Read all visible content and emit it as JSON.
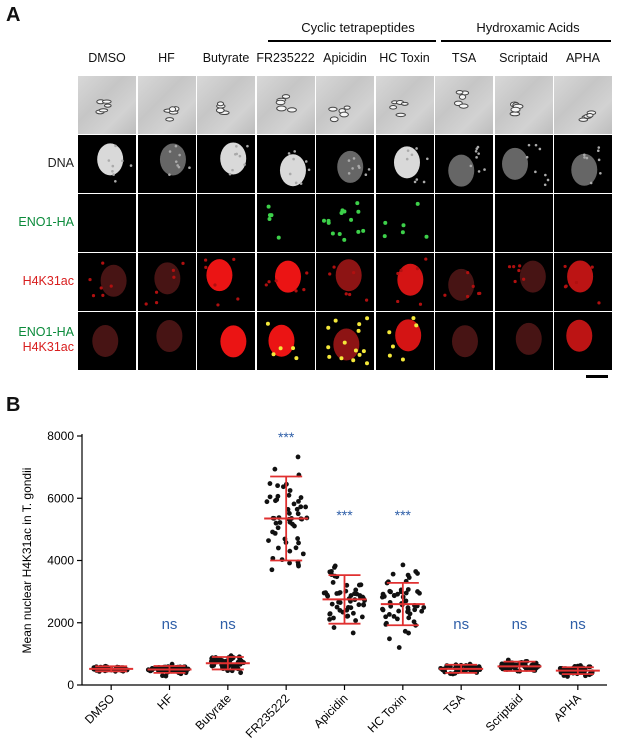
{
  "panel_a": {
    "letter": "A",
    "group_labels": {
      "cyclic": "Cyclic tetrapeptides",
      "hydroxamic": "Hydroxamic Acids"
    },
    "columns": [
      "DMSO",
      "HF",
      "Butyrate",
      "FR235222",
      "Apicidin",
      "HC Toxin",
      "TSA",
      "Scriptaid",
      "APHA"
    ],
    "rows": [
      {
        "label": "",
        "colors": []
      },
      {
        "label": "DNA",
        "colors": [
          "#222222"
        ]
      },
      {
        "label": "ENO1-HA",
        "colors": [
          "#0a8a3a"
        ]
      },
      {
        "label": "H4K31ac",
        "colors": [
          "#d81e1e"
        ]
      },
      {
        "label": "ENO1-HA",
        "label2": "H4K31ac",
        "colors": [
          "#0a8a3a",
          "#d81e1e"
        ]
      }
    ]
  },
  "panel_b": {
    "letter": "B"
  },
  "chart_data": {
    "type": "scatter",
    "title": "",
    "xlabel": "",
    "ylabel": "Mean nuclear H4K31ac in T. gondii",
    "ylim": [
      0,
      8000
    ],
    "yticks": [
      0,
      2000,
      4000,
      6000,
      8000
    ],
    "categories": [
      "DMSO",
      "HF",
      "Butyrate",
      "FR235222",
      "Apicidin",
      "HC Toxin",
      "TSA",
      "Scriptaid",
      "APHA"
    ],
    "means": [
      520,
      500,
      700,
      5350,
      2750,
      2600,
      520,
      600,
      460
    ],
    "sd": [
      80,
      110,
      200,
      1350,
      780,
      680,
      130,
      150,
      110
    ],
    "spread": [
      120,
      220,
      420,
      2600,
      1700,
      1600,
      220,
      250,
      220
    ],
    "significance": [
      "",
      "ns",
      "ns",
      "***",
      "***",
      "***",
      "ns",
      "ns",
      "ns"
    ],
    "significance_y": [
      null,
      1800,
      1800,
      7800,
      5300,
      5300,
      1800,
      1800,
      1800
    ],
    "n_points": 55,
    "colors": {
      "points": "#111111",
      "errorbar": "#e03030",
      "annotation": "#2f5fa8"
    }
  }
}
